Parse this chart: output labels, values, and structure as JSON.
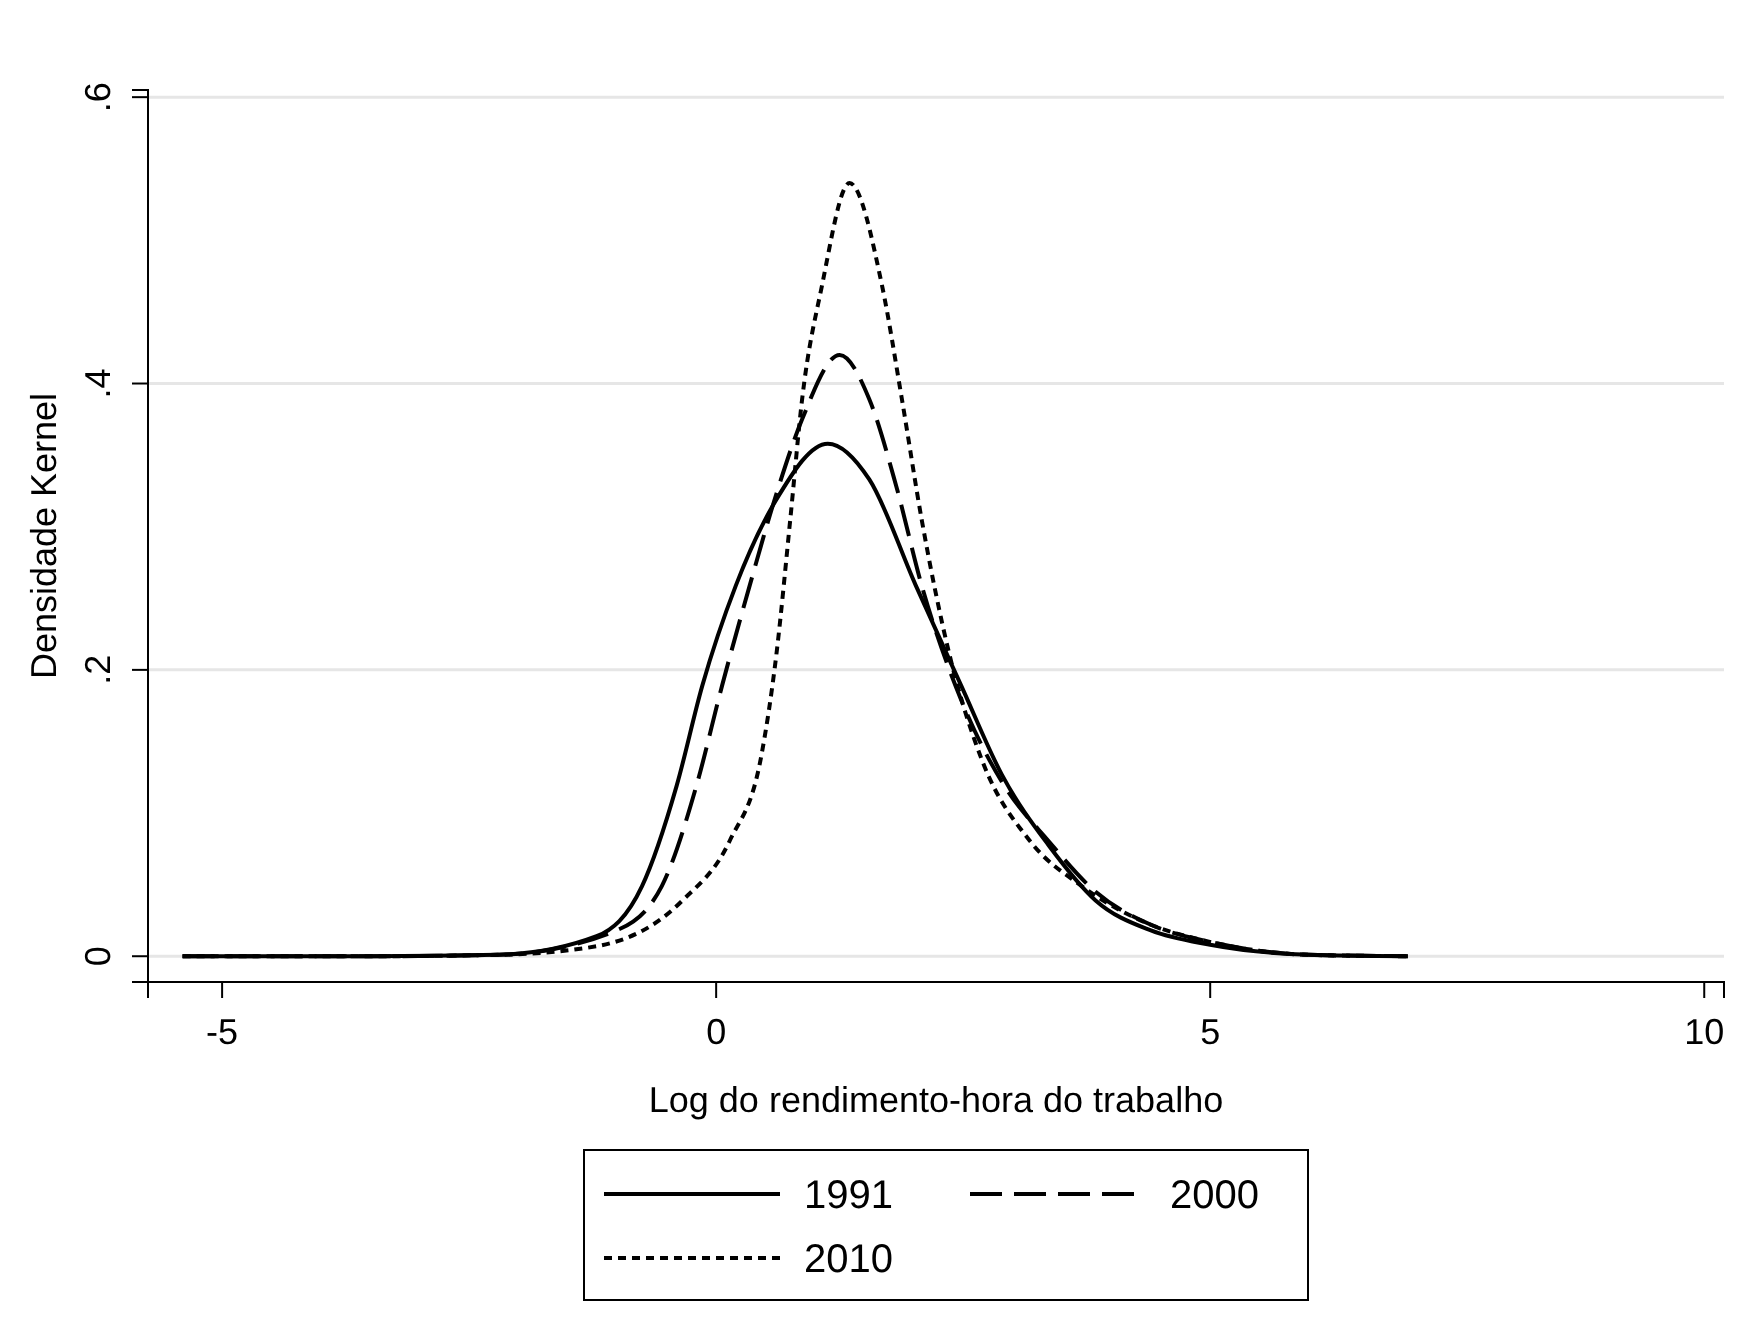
{
  "chart_data": {
    "type": "line",
    "xlabel": "Log do rendimento-hora do trabalho",
    "ylabel": "Densidade Kernel",
    "xlim": [
      -5.75,
      10.2
    ],
    "xticks": [
      -5,
      0,
      5,
      10
    ],
    "ylim": [
      -0.018,
      0.605
    ],
    "yticks": [
      0,
      {
        "value": 0.2,
        "label": ".2"
      },
      {
        "value": 0.4,
        "label": ".4"
      },
      {
        "value": 0.6,
        "label": ".6"
      }
    ],
    "grid": "y",
    "legend": "bottom",
    "marker": "none",
    "series": [
      {
        "name": "1991",
        "color": "#000000",
        "line_style": "solid",
        "x": [
          -5.4,
          -3.5,
          -2.2,
          -1.21,
          -0.75,
          -0.4,
          -0.14,
          0.2,
          0.61,
          1.13,
          1.55,
          2.02,
          2.48,
          2.89,
          3.37,
          3.84,
          4.4,
          5,
          6,
          7
        ],
        "values": [
          0,
          0,
          0.001,
          0.014,
          0.049,
          0.119,
          0.189,
          0.259,
          0.319,
          0.358,
          0.333,
          0.259,
          0.189,
          0.127,
          0.077,
          0.039,
          0.018,
          0.008,
          0.001,
          0
        ]
      },
      {
        "name": "2000",
        "color": "#000000",
        "line_style": "dashed",
        "x": [
          -5.4,
          -3.5,
          -2.2,
          -1.01,
          -0.55,
          -0.2,
          0.06,
          0.34,
          0.61,
          0.87,
          1.25,
          1.55,
          1.82,
          2.08,
          2.48,
          2.89,
          3.37,
          3.84,
          4.4,
          5,
          6,
          7
        ],
        "values": [
          0,
          0,
          0.001,
          0.018,
          0.049,
          0.119,
          0.189,
          0.259,
          0.323,
          0.375,
          0.42,
          0.389,
          0.329,
          0.259,
          0.179,
          0.122,
          0.08,
          0.045,
          0.022,
          0.01,
          0.001,
          0
        ]
      },
      {
        "name": "2010",
        "color": "#000000",
        "line_style": "dotted",
        "x": [
          -5.4,
          -3.5,
          -2.2,
          -1.21,
          -0.34,
          0.14,
          0.46,
          0.61,
          0.75,
          0.87,
          1.07,
          1.35,
          1.68,
          1.88,
          2.08,
          2.36,
          2.69,
          3.17,
          3.7,
          4.4,
          5,
          6,
          7
        ],
        "values": [
          0,
          0,
          0.001,
          0.007,
          0.039,
          0.081,
          0.141,
          0.211,
          0.305,
          0.389,
          0.468,
          0.54,
          0.468,
          0.389,
          0.305,
          0.211,
          0.137,
          0.081,
          0.049,
          0.022,
          0.01,
          0.001,
          0
        ]
      }
    ]
  }
}
